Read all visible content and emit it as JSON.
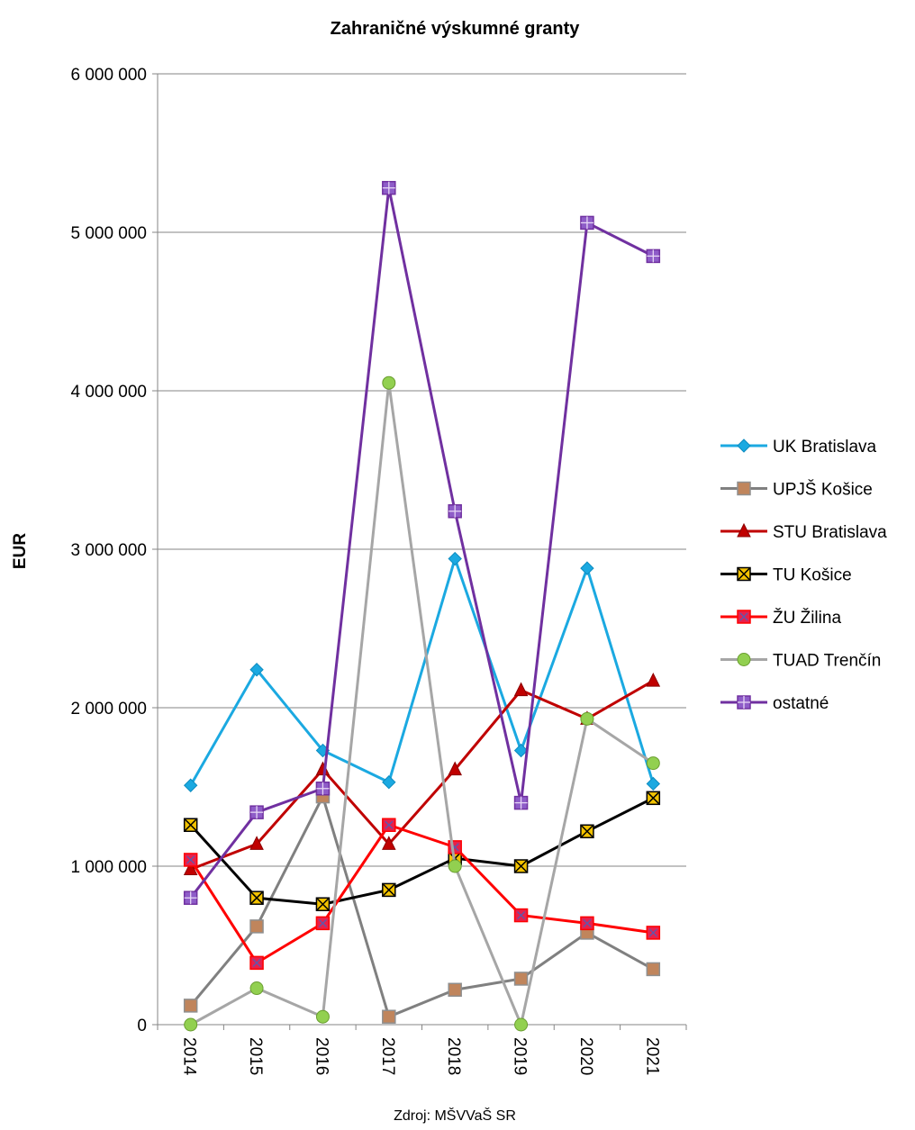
{
  "chart_data": {
    "type": "line",
    "title": "Zahraničné výskumné granty",
    "ylabel": "EUR",
    "xlabel": "",
    "source": "Zdroj: MŠVVaŠ SR",
    "ylim": [
      0,
      6000000
    ],
    "yticks": [
      0,
      1000000,
      2000000,
      3000000,
      4000000,
      5000000,
      6000000
    ],
    "ytick_labels": [
      "0",
      "1 000 000",
      "2 000 000",
      "3 000 000",
      "4 000 000",
      "5 000 000",
      "6 000 000"
    ],
    "categories": [
      "2014",
      "2015",
      "2016",
      "2017",
      "2018",
      "2019",
      "2020",
      "2021"
    ],
    "grid": true,
    "legend_position": "right",
    "series": [
      {
        "name": "UK Bratislava",
        "color": "#1BA9E1",
        "marker": "diamond",
        "values": [
          1510000,
          2240000,
          1730000,
          1530000,
          2940000,
          1730000,
          2880000,
          1520000
        ]
      },
      {
        "name": "UPJŠ Košice",
        "color": "#808080",
        "marker": "square-orange",
        "values": [
          120000,
          620000,
          1440000,
          50000,
          220000,
          290000,
          580000,
          350000
        ]
      },
      {
        "name": "STU Bratislava",
        "color": "#C00000",
        "marker": "triangle",
        "values": [
          980000,
          1140000,
          1610000,
          1140000,
          1610000,
          2110000,
          1930000,
          2170000
        ]
      },
      {
        "name": "TU Košice",
        "color": "#000000",
        "marker": "square-x",
        "values": [
          1260000,
          800000,
          760000,
          850000,
          1050000,
          1000000,
          1220000,
          1430000
        ]
      },
      {
        "name": "ŽU Žilina",
        "color": "#FF0000",
        "marker": "square-red",
        "values": [
          1040000,
          390000,
          640000,
          1260000,
          1120000,
          690000,
          640000,
          580000
        ]
      },
      {
        "name": "TUAD Trenčín",
        "color": "#A6A6A6",
        "marker": "circle",
        "values": [
          0,
          230000,
          50000,
          4050000,
          1000000,
          0,
          1930000,
          1650000
        ]
      },
      {
        "name": "ostatné",
        "color": "#7030A0",
        "marker": "square-plus",
        "values": [
          800000,
          1340000,
          1490000,
          5280000,
          3240000,
          1400000,
          5060000,
          4850000
        ]
      }
    ]
  }
}
